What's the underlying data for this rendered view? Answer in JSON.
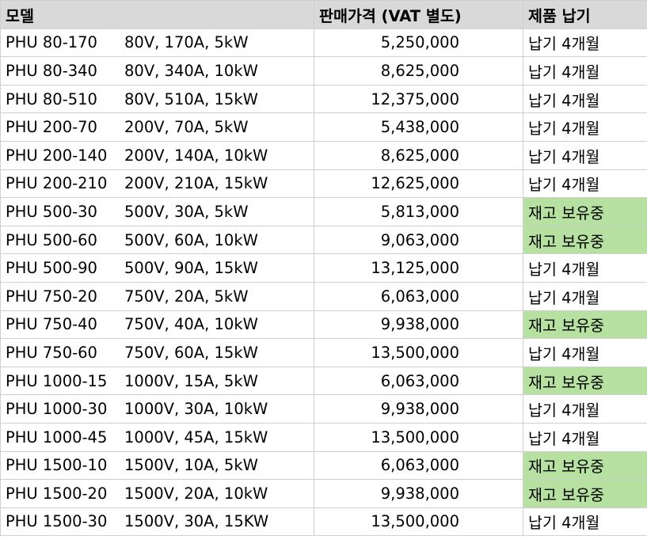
{
  "headers": {
    "model": "모델",
    "price": "판매가격 (VAT 별도)",
    "lead": "제품 납기"
  },
  "colors": {
    "header_bg": "#d9d9d9",
    "in_stock_bg": "#b7e1a1",
    "grid_line": "#cfcfcf"
  },
  "rows": [
    {
      "model": "PHU 80-170",
      "spec": "80V, 170A, 5kW",
      "price": "5,250,000",
      "lead": "납기 4개월",
      "in_stock": false
    },
    {
      "model": "PHU 80-340",
      "spec": "80V, 340A, 10kW",
      "price": "8,625,000",
      "lead": "납기 4개월",
      "in_stock": false
    },
    {
      "model": "PHU 80-510",
      "spec": "80V, 510A, 15kW",
      "price": "12,375,000",
      "lead": "납기 4개월",
      "in_stock": false
    },
    {
      "model": "PHU 200-70",
      "spec": "200V, 70A, 5kW",
      "price": "5,438,000",
      "lead": "납기 4개월",
      "in_stock": false
    },
    {
      "model": "PHU 200-140",
      "spec": "200V, 140A, 10kW",
      "price": "8,625,000",
      "lead": "납기 4개월",
      "in_stock": false
    },
    {
      "model": "PHU 200-210",
      "spec": "200V, 210A, 15kW",
      "price": "12,625,000",
      "lead": "납기 4개월",
      "in_stock": false
    },
    {
      "model": "PHU 500-30",
      "spec": "500V, 30A, 5kW",
      "price": "5,813,000",
      "lead": "재고 보유중",
      "in_stock": true
    },
    {
      "model": "PHU 500-60",
      "spec": "500V, 60A, 10kW",
      "price": "9,063,000",
      "lead": "재고 보유중",
      "in_stock": true
    },
    {
      "model": "PHU 500-90",
      "spec": "500V, 90A, 15kW",
      "price": "13,125,000",
      "lead": "납기 4개월",
      "in_stock": false
    },
    {
      "model": "PHU 750-20",
      "spec": "750V, 20A, 5kW",
      "price": "6,063,000",
      "lead": "납기 4개월",
      "in_stock": false
    },
    {
      "model": "PHU 750-40",
      "spec": "750V, 40A, 10kW",
      "price": "9,938,000",
      "lead": "재고 보유중",
      "in_stock": true
    },
    {
      "model": "PHU 750-60",
      "spec": "750V, 60A, 15kW",
      "price": "13,500,000",
      "lead": "납기 4개월",
      "in_stock": false
    },
    {
      "model": "PHU 1000-15",
      "spec": "1000V, 15A, 5kW",
      "price": "6,063,000",
      "lead": "재고 보유중",
      "in_stock": true
    },
    {
      "model": "PHU 1000-30",
      "spec": "1000V, 30A, 10kW",
      "price": "9,938,000",
      "lead": "납기 4개월",
      "in_stock": false
    },
    {
      "model": "PHU 1000-45",
      "spec": "1000V, 45A, 15kW",
      "price": "13,500,000",
      "lead": "납기 4개월",
      "in_stock": false
    },
    {
      "model": "PHU 1500-10",
      "spec": "1500V, 10A, 5kW",
      "price": "6,063,000",
      "lead": "재고 보유중",
      "in_stock": true
    },
    {
      "model": "PHU 1500-20",
      "spec": "1500V, 20A, 10kW",
      "price": "9,938,000",
      "lead": "재고 보유중",
      "in_stock": true
    },
    {
      "model": "PHU 1500-30",
      "spec": "1500V, 30A, 15KW",
      "price": "13,500,000",
      "lead": "납기 4개월",
      "in_stock": false
    }
  ]
}
